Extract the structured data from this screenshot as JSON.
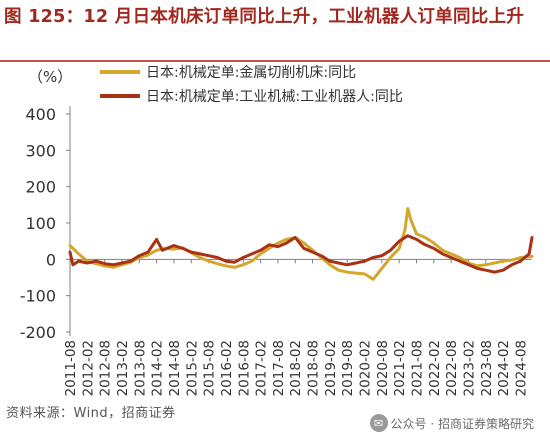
{
  "figure": {
    "title": "图 125：12 月日本机床订单同比上升，工业机器人订单同比上升",
    "source": "资料来源：Wind，招商证券",
    "watermark": "公众号 · 招商证券策略研究"
  },
  "chart_data": {
    "type": "line",
    "ylabel": "（%）",
    "ylim": [
      -200,
      400
    ],
    "yticks": [
      -200,
      -100,
      0,
      100,
      200,
      300,
      400
    ],
    "xticks": [
      "2011-08",
      "2012-02",
      "2012-08",
      "2013-02",
      "2013-08",
      "2014-02",
      "2014-08",
      "2015-02",
      "2015-08",
      "2016-02",
      "2016-08",
      "2017-02",
      "2017-08",
      "2018-02",
      "2018-08",
      "2019-02",
      "2019-08",
      "2020-02",
      "2020-08",
      "2021-02",
      "2021-08",
      "2022-02",
      "2022-08",
      "2023-02",
      "2023-08",
      "2024-02",
      "2024-08"
    ],
    "grid": false,
    "legend_position": "top",
    "series": [
      {
        "name": "日本:机械定单:金属切削机床:同比",
        "color": "#D4A72C",
        "points": [
          [
            "2011-08",
            38
          ],
          [
            "2011-11",
            15
          ],
          [
            "2012-02",
            -5
          ],
          [
            "2012-05",
            -12
          ],
          [
            "2012-08",
            -18
          ],
          [
            "2012-11",
            -22
          ],
          [
            "2013-02",
            -15
          ],
          [
            "2013-05",
            -8
          ],
          [
            "2013-08",
            5
          ],
          [
            "2013-11",
            12
          ],
          [
            "2014-02",
            25
          ],
          [
            "2014-05",
            30
          ],
          [
            "2014-08",
            28
          ],
          [
            "2014-11",
            32
          ],
          [
            "2015-02",
            18
          ],
          [
            "2015-05",
            5
          ],
          [
            "2015-08",
            -5
          ],
          [
            "2015-11",
            -12
          ],
          [
            "2016-02",
            -18
          ],
          [
            "2016-05",
            -22
          ],
          [
            "2016-08",
            -15
          ],
          [
            "2016-11",
            -5
          ],
          [
            "2017-02",
            15
          ],
          [
            "2017-05",
            30
          ],
          [
            "2017-08",
            45
          ],
          [
            "2017-11",
            55
          ],
          [
            "2018-02",
            60
          ],
          [
            "2018-05",
            45
          ],
          [
            "2018-08",
            25
          ],
          [
            "2018-11",
            5
          ],
          [
            "2019-02",
            -15
          ],
          [
            "2019-05",
            -30
          ],
          [
            "2019-08",
            -35
          ],
          [
            "2019-11",
            -38
          ],
          [
            "2020-02",
            -40
          ],
          [
            "2020-05",
            -55
          ],
          [
            "2020-08",
            -25
          ],
          [
            "2020-11",
            5
          ],
          [
            "2021-02",
            30
          ],
          [
            "2021-04",
            80
          ],
          [
            "2021-05",
            140
          ],
          [
            "2021-06",
            110
          ],
          [
            "2021-08",
            70
          ],
          [
            "2021-11",
            60
          ],
          [
            "2022-02",
            45
          ],
          [
            "2022-05",
            25
          ],
          [
            "2022-08",
            15
          ],
          [
            "2022-11",
            5
          ],
          [
            "2023-02",
            -10
          ],
          [
            "2023-05",
            -18
          ],
          [
            "2023-08",
            -15
          ],
          [
            "2023-11",
            -10
          ],
          [
            "2024-02",
            -5
          ],
          [
            "2024-05",
            -2
          ],
          [
            "2024-08",
            5
          ],
          [
            "2024-12",
            8
          ]
        ]
      },
      {
        "name": "日本:机械定单:工业机械:工业机器人:同比",
        "color": "#A83214",
        "points": [
          [
            "2011-08",
            20
          ],
          [
            "2011-09",
            -15
          ],
          [
            "2011-11",
            -5
          ],
          [
            "2012-02",
            -10
          ],
          [
            "2012-05",
            -5
          ],
          [
            "2012-08",
            -12
          ],
          [
            "2012-11",
            -15
          ],
          [
            "2013-02",
            -10
          ],
          [
            "2013-05",
            -5
          ],
          [
            "2013-08",
            10
          ],
          [
            "2013-11",
            20
          ],
          [
            "2014-02",
            55
          ],
          [
            "2014-04",
            25
          ],
          [
            "2014-08",
            38
          ],
          [
            "2014-11",
            30
          ],
          [
            "2015-02",
            20
          ],
          [
            "2015-05",
            15
          ],
          [
            "2015-08",
            10
          ],
          [
            "2015-11",
            5
          ],
          [
            "2016-02",
            -5
          ],
          [
            "2016-05",
            -8
          ],
          [
            "2016-08",
            5
          ],
          [
            "2016-11",
            15
          ],
          [
            "2017-02",
            25
          ],
          [
            "2017-05",
            40
          ],
          [
            "2017-08",
            35
          ],
          [
            "2017-11",
            45
          ],
          [
            "2018-02",
            60
          ],
          [
            "2018-05",
            30
          ],
          [
            "2018-08",
            20
          ],
          [
            "2018-11",
            10
          ],
          [
            "2019-02",
            -5
          ],
          [
            "2019-05",
            -10
          ],
          [
            "2019-08",
            -15
          ],
          [
            "2019-11",
            -10
          ],
          [
            "2020-02",
            -5
          ],
          [
            "2020-05",
            5
          ],
          [
            "2020-08",
            10
          ],
          [
            "2020-11",
            25
          ],
          [
            "2021-02",
            50
          ],
          [
            "2021-05",
            65
          ],
          [
            "2021-08",
            55
          ],
          [
            "2021-11",
            40
          ],
          [
            "2022-02",
            30
          ],
          [
            "2022-05",
            15
          ],
          [
            "2022-08",
            5
          ],
          [
            "2022-11",
            -5
          ],
          [
            "2023-02",
            -15
          ],
          [
            "2023-05",
            -25
          ],
          [
            "2023-08",
            -30
          ],
          [
            "2023-11",
            -35
          ],
          [
            "2024-02",
            -30
          ],
          [
            "2024-05",
            -15
          ],
          [
            "2024-08",
            -5
          ],
          [
            "2024-11",
            15
          ],
          [
            "2024-12",
            60
          ]
        ]
      }
    ]
  }
}
